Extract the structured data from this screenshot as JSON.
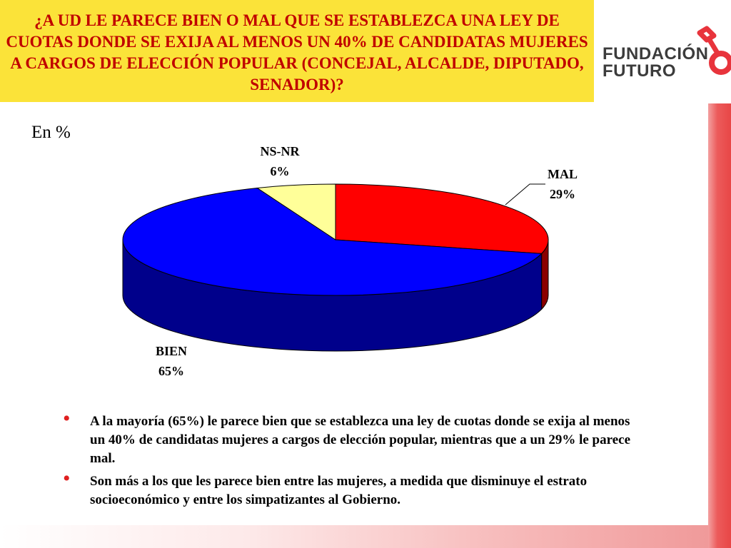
{
  "header": {
    "question": "¿A UD LE PARECE BIEN O MAL QUE SE ESTABLEZCA UNA LEY DE CUOTAS DONDE SE EXIJA AL MENOS UN 40% DE CANDIDATAS MUJERES A CARGOS DE ELECCIÓN POPULAR (CONCEJAL, ALCALDE, DIPUTADO, SENADOR)?"
  },
  "logo": {
    "line1": "FUNDACIÓN",
    "line2": "FUTURO",
    "icon": "key-logo-icon"
  },
  "chart_data": {
    "type": "pie",
    "unit_label": "En %",
    "slices": [
      {
        "label": "MAL",
        "value": 29,
        "display": "29%",
        "color": "#FF0000",
        "side_color": "#8B0000"
      },
      {
        "label": "BIEN",
        "value": 65,
        "display": "65%",
        "color": "#0000FF",
        "side_color": "#00008B"
      },
      {
        "label": "NS-NR",
        "value": 6,
        "display": "6%",
        "color": "#FFFF99",
        "side_color": "#B3B36B"
      }
    ]
  },
  "bullets": [
    "A la mayoría (65%) le parece bien que se establezca una ley de cuotas donde se exija al menos un 40% de candidatas mujeres a cargos de elección popular, mientras que a un 29% le parece mal.",
    "Son más a los que les parece bien entre las mujeres, a medida que disminuye el estrato socioeconómico y entre los simpatizantes al Gobierno."
  ],
  "colors": {
    "title_bg": "#FBE339",
    "title_text": "#C00000",
    "bullet_marker": "#E02020",
    "accent_strip": "#E84646"
  }
}
